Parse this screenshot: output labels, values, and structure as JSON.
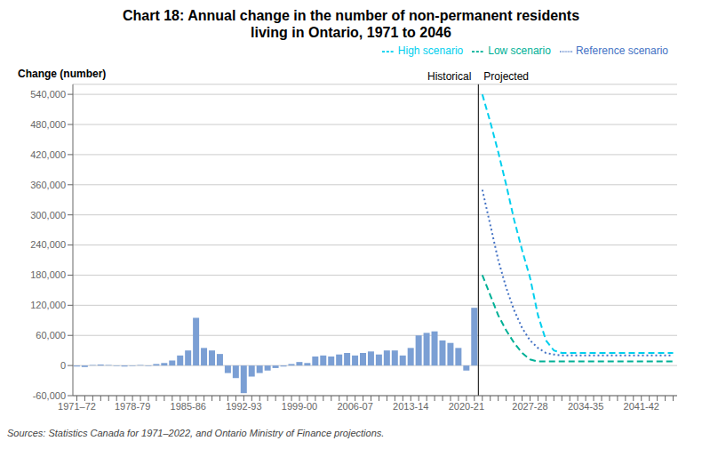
{
  "chart_data": {
    "type": "bar",
    "title": "Chart 18: Annual change in the number of non-permanent residents\nliving in Ontario, 1971 to 2046",
    "ylabel": "Change (number)",
    "source": "Sources: Statistics Canada for 1971–2022, and Ontario Ministry of Finance projections.",
    "annotations": [
      "Historical",
      "Projected"
    ],
    "categories": [
      "1971–72",
      null,
      null,
      null,
      null,
      null,
      null,
      "1978-79",
      null,
      null,
      null,
      null,
      null,
      null,
      "1985-86",
      null,
      null,
      null,
      null,
      null,
      null,
      "1992-93",
      null,
      null,
      null,
      null,
      null,
      null,
      "1999-00",
      null,
      null,
      null,
      null,
      null,
      null,
      "2006-07",
      null,
      null,
      null,
      null,
      null,
      null,
      "2013-14",
      null,
      null,
      null,
      null,
      null,
      null,
      "2020-21",
      null,
      null,
      null,
      null,
      null,
      null,
      null,
      "2027-28",
      null,
      null,
      null,
      null,
      null,
      null,
      "2034-35",
      null,
      null,
      null,
      null,
      null,
      null,
      "2041-42",
      null,
      null,
      null,
      null
    ],
    "series": [
      {
        "type": "bar",
        "color": "#7b9fd4",
        "values": [
          -2000,
          -3000,
          1000,
          2000,
          1000,
          -1000,
          -2000,
          -1000,
          1000,
          -1000,
          3000,
          5000,
          10000,
          20000,
          30000,
          95000,
          35000,
          30000,
          23000,
          -15000,
          -25000,
          -55000,
          -22000,
          -15000,
          -10000,
          -5000,
          -2000,
          3000,
          7000,
          5000,
          18000,
          20000,
          18000,
          22000,
          25000,
          20000,
          25000,
          28000,
          22000,
          30000,
          30000,
          20000,
          35000,
          60000,
          65000,
          68000,
          50000,
          45000,
          35000,
          -10000,
          115000,
          null,
          null,
          null,
          null,
          null,
          null,
          null,
          null,
          null,
          null,
          null,
          null,
          null,
          null,
          null,
          null,
          null,
          null,
          null,
          null,
          null,
          null,
          null,
          null,
          null
        ]
      },
      {
        "type": "line",
        "name": "Reference scenario",
        "color": "#4472c4",
        "line_style": "dotted",
        "values": [
          null,
          null,
          null,
          null,
          null,
          null,
          null,
          null,
          null,
          null,
          null,
          null,
          null,
          null,
          null,
          null,
          null,
          null,
          null,
          null,
          null,
          null,
          null,
          null,
          null,
          null,
          null,
          null,
          null,
          null,
          null,
          null,
          null,
          null,
          null,
          null,
          null,
          null,
          null,
          null,
          null,
          null,
          null,
          null,
          null,
          null,
          null,
          null,
          null,
          null,
          null,
          350000,
          280000,
          210000,
          155000,
          110000,
          75000,
          50000,
          35000,
          25000,
          22000,
          20000,
          20000,
          20000,
          20000,
          20000,
          20000,
          20000,
          20000,
          20000,
          20000,
          20000,
          20000,
          20000,
          20000,
          20000
        ]
      },
      {
        "type": "line",
        "name": "Low scenario",
        "color": "#00b096",
        "line_style": "dashed",
        "values": [
          null,
          null,
          null,
          null,
          null,
          null,
          null,
          null,
          null,
          null,
          null,
          null,
          null,
          null,
          null,
          null,
          null,
          null,
          null,
          null,
          null,
          null,
          null,
          null,
          null,
          null,
          null,
          null,
          null,
          null,
          null,
          null,
          null,
          null,
          null,
          null,
          null,
          null,
          null,
          null,
          null,
          null,
          null,
          null,
          null,
          null,
          null,
          null,
          null,
          null,
          null,
          180000,
          140000,
          100000,
          70000,
          45000,
          25000,
          12000,
          8000,
          8000,
          8000,
          8000,
          8000,
          8000,
          8000,
          8000,
          8000,
          8000,
          8000,
          8000,
          8000,
          8000,
          8000,
          8000,
          8000,
          8000
        ]
      },
      {
        "type": "line",
        "name": "High scenario",
        "color": "#00cfee",
        "line_style": "dashed",
        "values": [
          null,
          null,
          null,
          null,
          null,
          null,
          null,
          null,
          null,
          null,
          null,
          null,
          null,
          null,
          null,
          null,
          null,
          null,
          null,
          null,
          null,
          null,
          null,
          null,
          null,
          null,
          null,
          null,
          null,
          null,
          null,
          null,
          null,
          null,
          null,
          null,
          null,
          null,
          null,
          null,
          null,
          null,
          null,
          null,
          null,
          null,
          null,
          null,
          null,
          null,
          null,
          540000,
          485000,
          425000,
          360000,
          290000,
          230000,
          175000,
          100000,
          50000,
          30000,
          25000,
          25000,
          25000,
          25000,
          25000,
          25000,
          25000,
          25000,
          25000,
          25000,
          25000,
          25000,
          25000,
          25000,
          25000
        ]
      }
    ],
    "ylim": [
      -60000,
      560000
    ],
    "yticks": [
      {
        "value": -60000,
        "label": "-60,000"
      },
      0,
      {
        "value": 60000,
        "label": "60,000"
      },
      {
        "value": 120000,
        "label": "120,000"
      },
      {
        "value": 180000,
        "label": "180,000"
      },
      {
        "value": 240000,
        "label": "240,000"
      },
      {
        "value": 300000,
        "label": "300,000"
      },
      {
        "value": 360000,
        "label": "360,000"
      },
      {
        "value": 420000,
        "label": "420,000"
      },
      {
        "value": 480000,
        "label": "480,000"
      },
      {
        "value": 540000,
        "label": "540,000"
      }
    ],
    "grid": true,
    "legend": "upper right"
  }
}
